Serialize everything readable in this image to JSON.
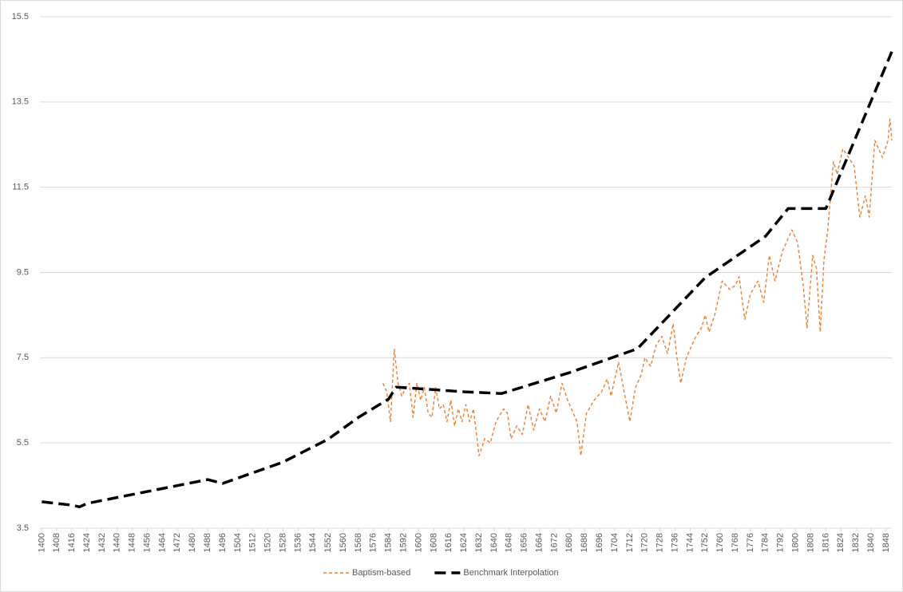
{
  "chart_data": {
    "type": "line",
    "xlim": [
      1399,
      1851
    ],
    "xticks": [
      1400,
      1408,
      1416,
      1424,
      1432,
      1440,
      1448,
      1456,
      1464,
      1472,
      1480,
      1488,
      1496,
      1504,
      1512,
      1520,
      1528,
      1536,
      1544,
      1552,
      1560,
      1568,
      1576,
      1584,
      1592,
      1600,
      1608,
      1616,
      1624,
      1632,
      1640,
      1648,
      1656,
      1664,
      1672,
      1680,
      1688,
      1696,
      1704,
      1712,
      1720,
      1728,
      1736,
      1744,
      1752,
      1760,
      1768,
      1776,
      1784,
      1792,
      1800,
      1808,
      1816,
      1824,
      1832,
      1840,
      1848
    ],
    "ylim": [
      3.5,
      15.5
    ],
    "yticks": [
      3.5,
      5.5,
      7.5,
      9.5,
      11.5,
      13.5,
      15.5
    ],
    "grid": true,
    "legend": "bottom",
    "series": [
      {
        "name": "Baptism-based",
        "color": "#ed7d31",
        "dash": "dashed",
        "x": [
          1581,
          1583,
          1585,
          1587,
          1589,
          1591,
          1593,
          1595,
          1597,
          1599,
          1601,
          1603,
          1605,
          1607,
          1609,
          1611,
          1613,
          1615,
          1617,
          1619,
          1621,
          1623,
          1625,
          1627,
          1629,
          1632,
          1635,
          1638,
          1641,
          1645,
          1647,
          1649,
          1652,
          1655,
          1658,
          1661,
          1664,
          1667,
          1670,
          1673,
          1676,
          1679,
          1681,
          1684,
          1686,
          1689,
          1693,
          1697,
          1700,
          1702,
          1706,
          1709,
          1712,
          1715,
          1718,
          1720,
          1723,
          1726,
          1729,
          1732,
          1735,
          1737,
          1739,
          1742,
          1744,
          1747,
          1750,
          1752,
          1754,
          1757,
          1761,
          1765,
          1768,
          1770,
          1773,
          1776,
          1780,
          1783,
          1786,
          1789,
          1793,
          1798,
          1801,
          1804,
          1806,
          1809,
          1811,
          1813,
          1815,
          1817,
          1820,
          1822,
          1825,
          1828,
          1831,
          1834,
          1837,
          1839,
          1842,
          1846,
          1849,
          1850,
          1851
        ],
        "values": [
          6.9,
          6.7,
          6.0,
          7.7,
          6.9,
          6.6,
          6.8,
          6.9,
          6.1,
          6.9,
          6.5,
          6.8,
          6.2,
          6.1,
          6.8,
          6.3,
          6.4,
          6.0,
          6.5,
          5.9,
          6.3,
          6.0,
          6.4,
          6.0,
          6.3,
          5.2,
          5.6,
          5.5,
          6.0,
          6.3,
          6.2,
          5.6,
          5.9,
          5.7,
          6.4,
          5.8,
          6.3,
          6.0,
          6.6,
          6.2,
          6.9,
          6.5,
          6.3,
          6.0,
          5.2,
          6.2,
          6.5,
          6.7,
          7.0,
          6.6,
          7.4,
          6.7,
          6.0,
          6.8,
          7.1,
          7.5,
          7.3,
          7.8,
          8.0,
          7.6,
          8.3,
          7.5,
          6.9,
          7.5,
          7.7,
          8.0,
          8.2,
          8.5,
          8.1,
          8.5,
          9.3,
          9.1,
          9.2,
          9.4,
          8.4,
          9.0,
          9.3,
          8.8,
          9.9,
          9.3,
          10.0,
          10.5,
          10.2,
          9.2,
          8.2,
          9.9,
          9.6,
          8.1,
          9.8,
          10.5,
          12.1,
          11.8,
          12.4,
          12.2,
          12.0,
          10.8,
          11.3,
          10.8,
          12.6,
          12.2,
          12.6,
          13.1,
          12.6
        ]
      },
      {
        "name": "Benchmark Interpolation",
        "color": "#000000",
        "dash": "long-dash",
        "x": [
          1400,
          1408,
          1416,
          1420,
          1424,
          1488,
          1496,
          1528,
          1552,
          1568,
          1584,
          1588,
          1608,
          1624,
          1644,
          1680,
          1716,
          1752,
          1784,
          1796,
          1816,
          1851
        ],
        "values": [
          4.12,
          4.08,
          4.04,
          4.0,
          4.08,
          4.64,
          4.55,
          5.05,
          5.59,
          6.1,
          6.53,
          6.81,
          6.75,
          6.7,
          6.66,
          7.15,
          7.71,
          9.38,
          10.35,
          11.0,
          11.0,
          14.68
        ]
      }
    ]
  }
}
